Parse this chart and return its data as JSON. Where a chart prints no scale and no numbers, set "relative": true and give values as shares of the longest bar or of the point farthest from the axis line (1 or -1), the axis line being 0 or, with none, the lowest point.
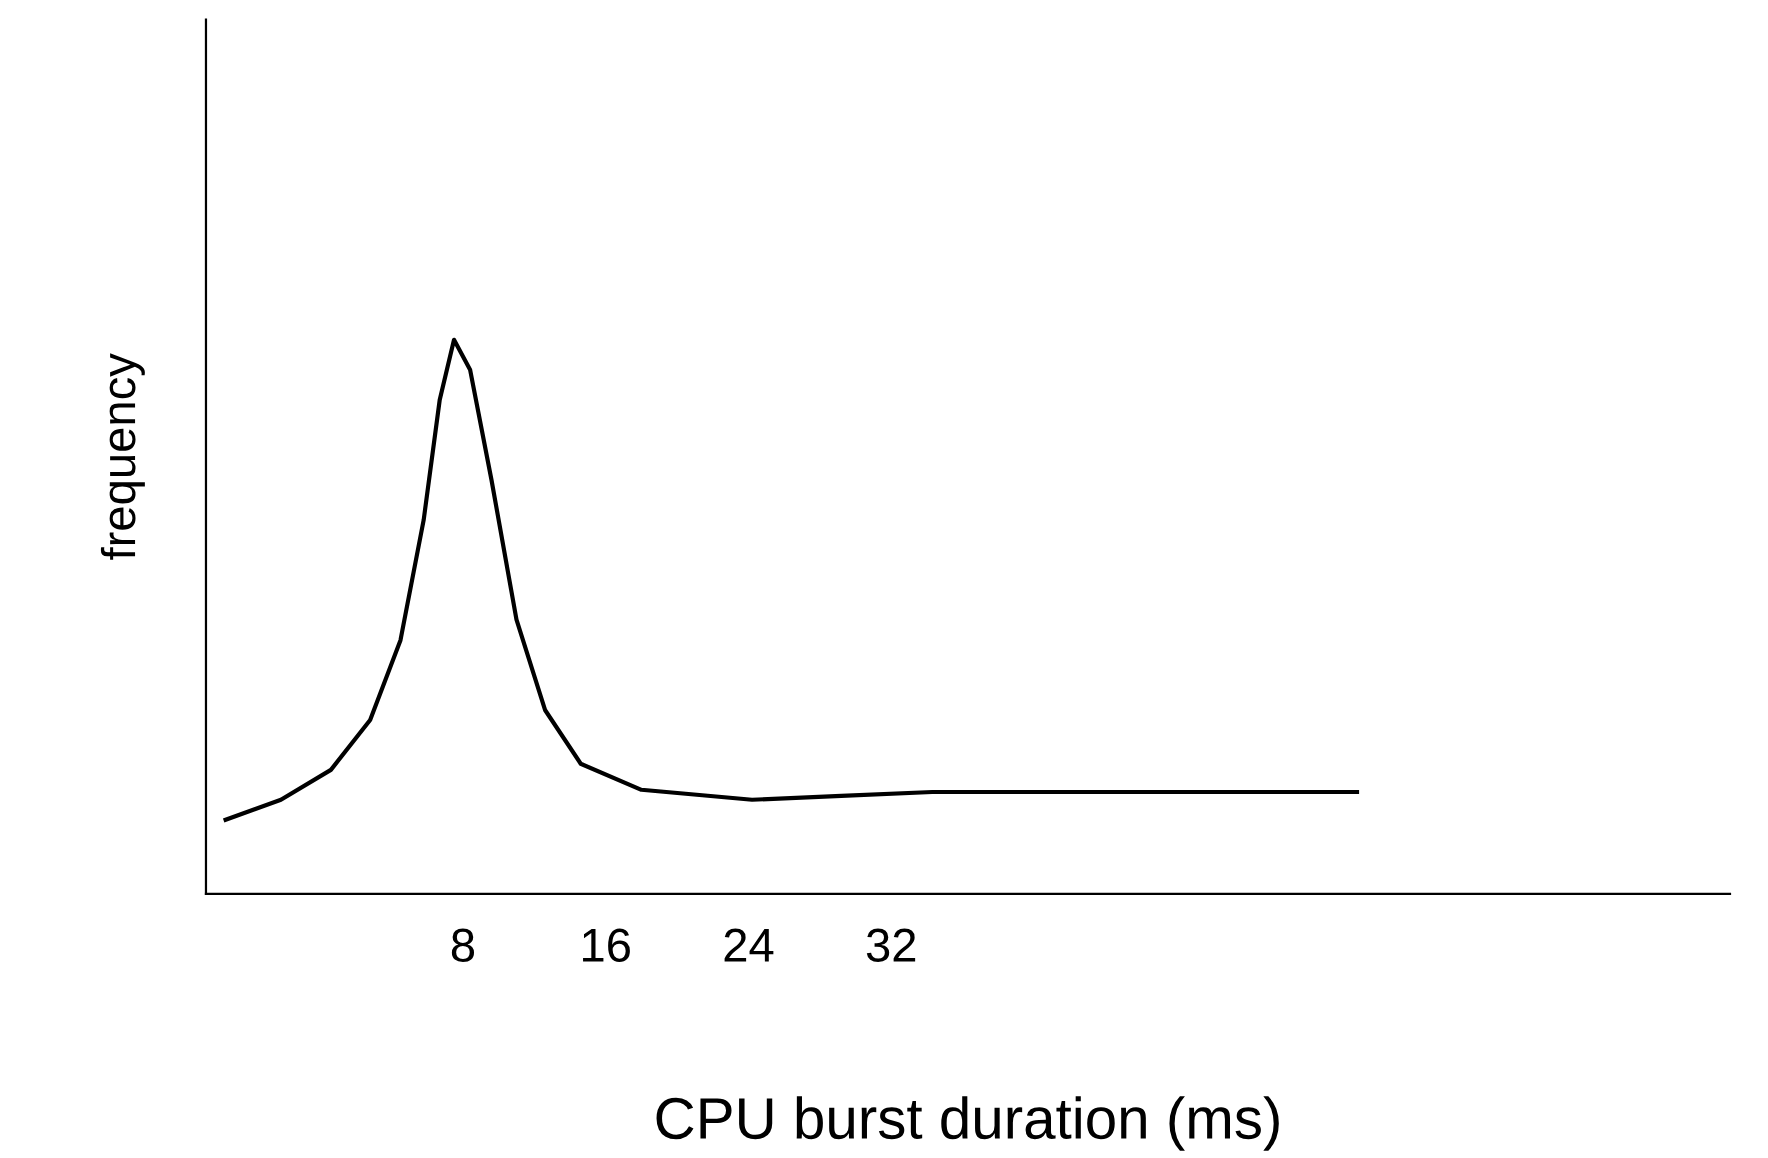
{
  "chart_data": {
    "type": "line",
    "xlabel": "CPU burst duration (ms)",
    "ylabel": "frequency",
    "relative": true,
    "color": "#000000",
    "x": [
      -5.3,
      -2.2,
      0.6,
      2.8,
      4.5,
      5.8,
      6.7,
      7.5,
      8.4,
      9.6,
      11.0,
      12.6,
      14.6,
      18.0,
      24.2,
      29.2,
      34.3,
      42.7,
      58.1
    ],
    "values": [
      0.134,
      0.17,
      0.224,
      0.314,
      0.458,
      0.675,
      0.892,
      1.0,
      0.946,
      0.747,
      0.495,
      0.332,
      0.235,
      0.188,
      0.17,
      0.177,
      0.184,
      0.184,
      0.184
    ],
    "xlim": [
      -6.4,
      79
    ],
    "xticks": [
      8,
      16,
      24,
      32
    ],
    "grid": false,
    "legend": false,
    "marker": "none",
    "line_style": "solid"
  }
}
